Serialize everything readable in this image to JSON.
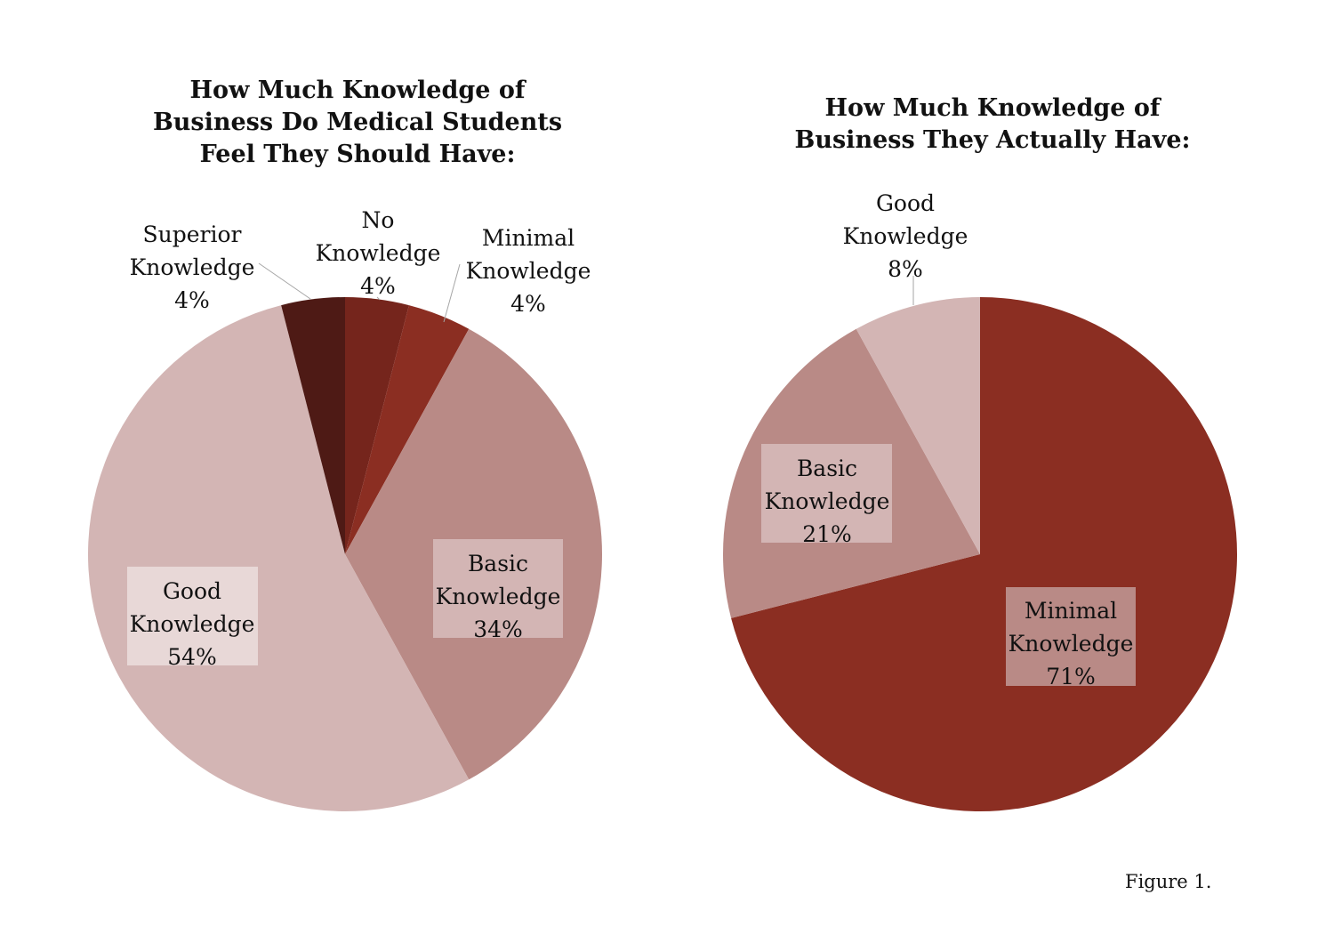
{
  "chart_data": [
    {
      "type": "pie",
      "title_lines": [
        "How Much Knowledge of",
        "Business Do Medical Students",
        "Feel They Should Have:"
      ],
      "slices": [
        {
          "label": "No Knowledge",
          "label_lines": [
            "No",
            "Knowledge",
            "4%"
          ],
          "value": 4,
          "color": "#75251c"
        },
        {
          "label": "Minimal Knowledge",
          "label_lines": [
            "Minimal",
            "Knowledge",
            "4%"
          ],
          "value": 4,
          "color": "#8b2e22"
        },
        {
          "label": "Basic Knowledge",
          "label_lines": [
            "Basic",
            "Knowledge",
            "34%"
          ],
          "value": 34,
          "color": "#b98a86"
        },
        {
          "label": "Good Knowledge",
          "label_lines": [
            "Good",
            "Knowledge",
            "54%"
          ],
          "value": 54,
          "color": "#d3b5b4"
        },
        {
          "label": "Superior Knowledge",
          "label_lines": [
            "Superior",
            "Knowledge",
            "4%"
          ],
          "value": 4,
          "color": "#4e1a15"
        }
      ]
    },
    {
      "type": "pie",
      "title_lines": [
        "How Much Knowledge of",
        "Business They Actually Have:"
      ],
      "slices": [
        {
          "label": "Minimal Knowledge",
          "label_lines": [
            "Minimal",
            "Knowledge",
            "71%"
          ],
          "value": 71,
          "color": "#8b2e22"
        },
        {
          "label": "Basic Knowledge",
          "label_lines": [
            "Basic",
            "Knowledge",
            "21%"
          ],
          "value": 21,
          "color": "#b98a86"
        },
        {
          "label": "Good Knowledge",
          "label_lines": [
            "Good",
            "Knowledge",
            "8%"
          ],
          "value": 8,
          "color": "#d3b5b4"
        }
      ]
    }
  ],
  "figure_caption": "Figure 1."
}
